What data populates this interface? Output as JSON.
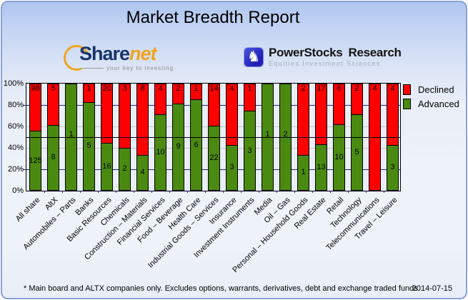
{
  "title": "Market Breadth Report",
  "logos": {
    "sharenet": {
      "brand_primary": "Share",
      "brand_secondary": "net",
      "tagline": "your key to investing"
    },
    "powerstocks": {
      "knight_icon": "♞",
      "brand_primary": "PowerStocks",
      "brand_secondary": "Research",
      "subtitle": "Equities Investment Sciences"
    }
  },
  "legend": {
    "declined_label": "Declined",
    "advanced_label": "Advanced"
  },
  "footer": {
    "note": "* Main board and ALTX companies only. Excludes options, warrants, derivatives, debt and exchange traded funds",
    "date": "2014-07-15"
  },
  "colors": {
    "declined": "#ff0000",
    "advanced": "#4a8a10",
    "grid_major": "#23238f",
    "grid_minor": "#c6c6c6",
    "reference_line": "#000000"
  },
  "chart_data": {
    "type": "bar",
    "stacked": true,
    "title": "Market Breadth Report",
    "xlabel": "",
    "ylabel": "",
    "ylim": [
      0,
      100
    ],
    "y_ticks": [
      "100%",
      "80%",
      "60%",
      "40%",
      "20%",
      "0%"
    ],
    "grid": true,
    "reference_line_pct": 50,
    "legend_position": "top-right",
    "categories": [
      "All share",
      "AltX",
      "Automobiles – Parts",
      "Banks",
      "Basic Resources",
      "Chemicals",
      "Construction – Materials",
      "Financial Services",
      "Food – Beverage",
      "Health Care",
      "Industrial Goods – Services",
      "Insurance",
      "Investment Instruments",
      "Media",
      "Oil – Gas",
      "Personal – Household Goods",
      "Real Estate",
      "Retail",
      "Technology",
      "Telecommunications",
      "Travel – Leisure"
    ],
    "series": [
      {
        "name": "Advanced",
        "color": "#4a8a10",
        "counts": [
          125,
          8,
          1,
          5,
          16,
          2,
          4,
          10,
          9,
          6,
          22,
          3,
          3,
          1,
          2,
          1,
          13,
          10,
          5,
          0,
          3
        ]
      },
      {
        "name": "Declined",
        "color": "#ff0000",
        "counts": [
          98,
          5,
          0,
          1,
          20,
          3,
          8,
          4,
          2,
          1,
          14,
          4,
          1,
          0,
          0,
          2,
          17,
          6,
          2,
          4,
          4
        ]
      }
    ]
  }
}
